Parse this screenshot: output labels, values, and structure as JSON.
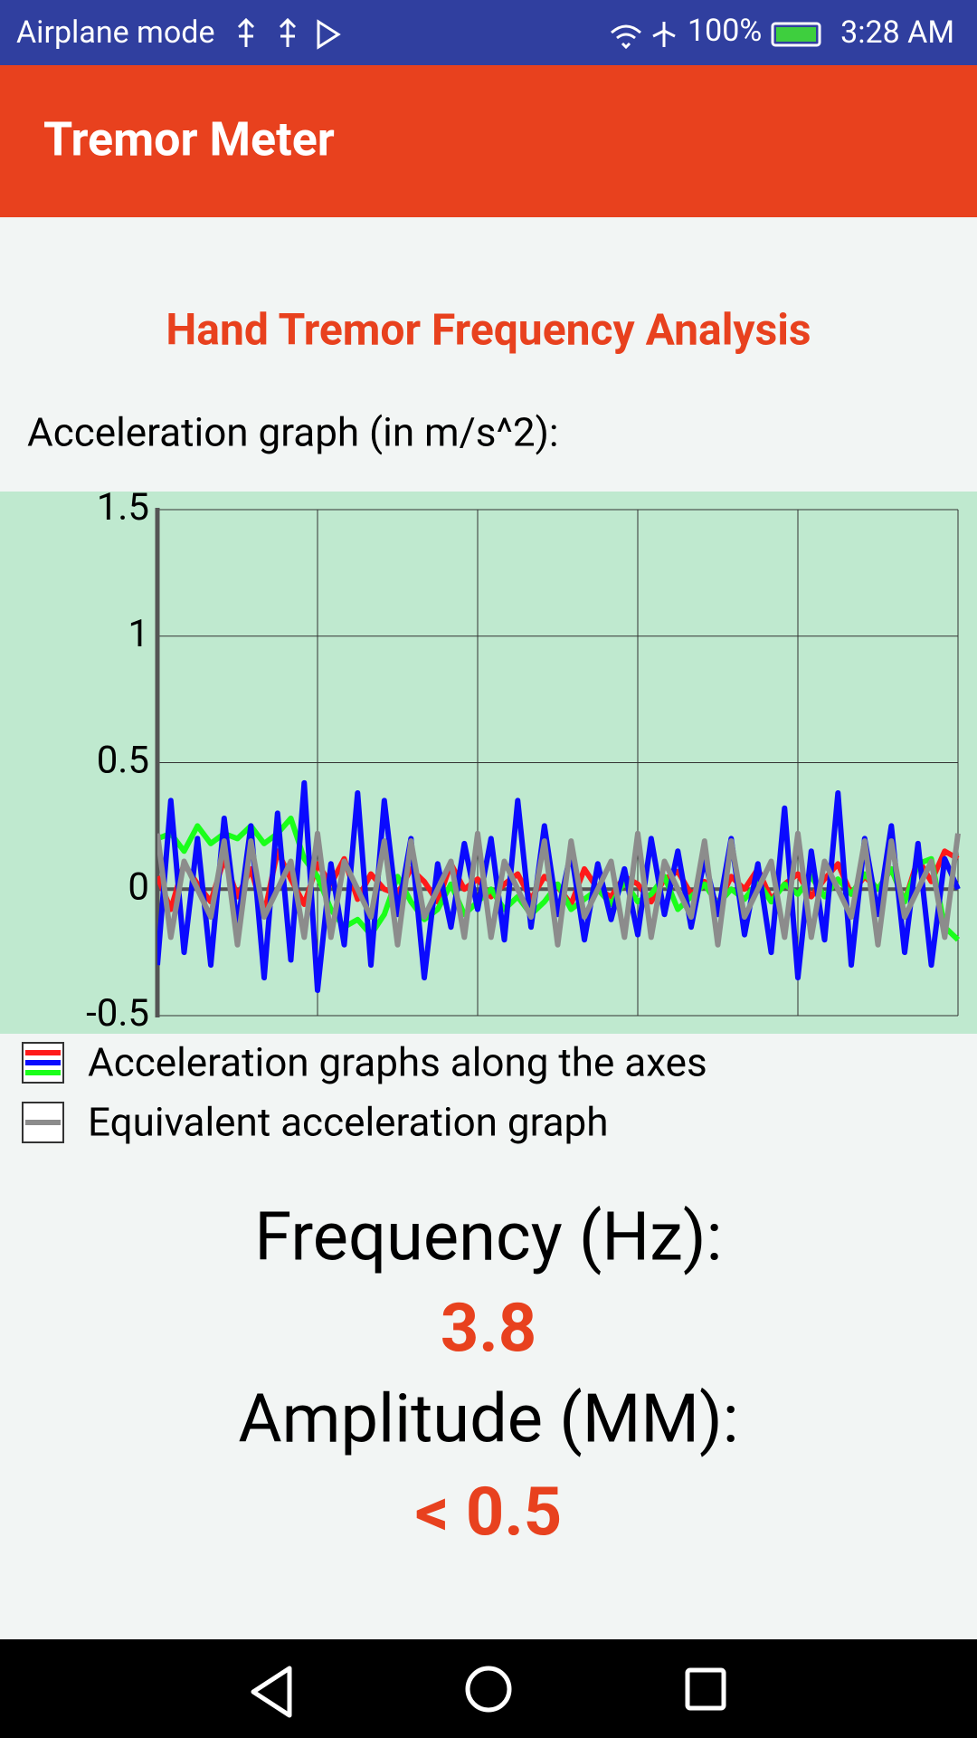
{
  "status_bar": {
    "left": "Airplane mode",
    "battery": "100%",
    "time": "3:28 AM"
  },
  "app_bar": {
    "title": "Tremor Meter"
  },
  "heading": "Hand Tremor Frequency Analysis",
  "graph_label": "Acceleration graph (in m/s^2):",
  "chart_data": {
    "type": "line",
    "x": [
      0,
      1,
      2,
      3,
      4,
      5,
      6,
      7,
      8,
      9,
      10,
      11,
      12,
      13,
      14,
      15,
      16,
      17,
      18,
      19,
      20,
      21,
      22,
      23,
      24,
      25,
      26,
      27,
      28,
      29,
      30,
      31,
      32,
      33,
      34,
      35,
      36,
      37,
      38,
      39,
      40,
      41,
      42,
      43,
      44,
      45,
      46,
      47,
      48,
      49,
      50,
      51,
      52,
      53,
      54,
      55,
      56,
      57,
      58,
      59,
      60
    ],
    "xlim": [
      0,
      60
    ],
    "xticks": [
      0,
      12,
      24,
      36,
      48,
      60
    ],
    "ylim": [
      -0.5,
      1.5
    ],
    "yticks": [
      -0.5,
      0,
      0.5,
      1,
      1.5
    ],
    "grid": true,
    "series": [
      {
        "color": "#ff1a1a",
        "values": [
          0.05,
          -0.08,
          0.1,
          0.02,
          -0.05,
          0.12,
          -0.03,
          0.08,
          -0.1,
          0.15,
          0.04,
          -0.06,
          0.1,
          0.02,
          0.12,
          -0.04,
          0.06,
          0.0,
          -0.02,
          0.08,
          0.03,
          -0.05,
          0.1,
          0.0,
          0.04,
          -0.03,
          0.02,
          0.06,
          -0.04,
          0.05,
          0.01,
          -0.06,
          0.08,
          0.0,
          -0.03,
          0.05,
          0.02,
          -0.05,
          0.04,
          0.07,
          -0.02,
          0.03,
          -0.06,
          0.05,
          0.0,
          0.08,
          -0.04,
          0.02,
          0.06,
          -0.03,
          0.04,
          0.1,
          -0.02,
          0.05,
          0.0,
          0.08,
          -0.05,
          0.12,
          0.03,
          0.15,
          0.12
        ]
      },
      {
        "color": "#1aff1a",
        "values": [
          0.2,
          0.22,
          0.15,
          0.25,
          0.18,
          0.22,
          0.2,
          0.25,
          0.18,
          0.22,
          0.28,
          0.12,
          0.05,
          -0.08,
          -0.15,
          -0.12,
          -0.18,
          -0.1,
          0.05,
          -0.05,
          -0.12,
          -0.08,
          0.02,
          -0.1,
          -0.05,
          0.0,
          -0.08,
          -0.03,
          -0.1,
          -0.05,
          0.02,
          -0.08,
          -0.04,
          0.0,
          -0.06,
          0.03,
          -0.05,
          -0.02,
          0.05,
          -0.08,
          -0.03,
          0.02,
          -0.06,
          0.0,
          -0.04,
          0.03,
          -0.05,
          0.02,
          -0.02,
          0.05,
          -0.03,
          0.04,
          -0.02,
          0.06,
          0.0,
          0.08,
          -0.05,
          0.1,
          0.12,
          -0.15,
          -0.2
        ]
      },
      {
        "color": "#0a0aff",
        "values": [
          -0.3,
          0.35,
          -0.25,
          0.2,
          -0.3,
          0.28,
          -0.15,
          0.25,
          -0.35,
          0.3,
          -0.28,
          0.42,
          -0.4,
          0.1,
          -0.22,
          0.38,
          -0.3,
          0.35,
          -0.1,
          0.2,
          -0.35,
          0.1,
          -0.15,
          0.18,
          -0.08,
          0.2,
          -0.2,
          0.35,
          -0.15,
          0.25,
          -0.1,
          0.15,
          -0.2,
          0.1,
          -0.12,
          0.08,
          -0.18,
          0.2,
          -0.1,
          0.15,
          -0.15,
          0.12,
          -0.1,
          0.2,
          -0.18,
          0.1,
          -0.25,
          0.32,
          -0.35,
          0.15,
          -0.2,
          0.38,
          -0.3,
          0.2,
          -0.1,
          0.25,
          -0.25,
          0.18,
          -0.3,
          0.12,
          0.0
        ]
      },
      {
        "color": "#8c8c8c",
        "values": [
          0.22,
          -0.19,
          0.11,
          0,
          -0.11,
          0.19,
          -0.22,
          0.19,
          -0.11,
          0,
          0.11,
          -0.19,
          0.22,
          -0.19,
          0.11,
          0,
          -0.11,
          0.19,
          -0.22,
          0.19,
          -0.11,
          0,
          0.11,
          -0.19,
          0.22,
          -0.19,
          0.11,
          0,
          -0.11,
          0.19,
          -0.22,
          0.19,
          -0.11,
          0,
          0.11,
          -0.19,
          0.22,
          -0.19,
          0.11,
          0,
          -0.11,
          0.19,
          -0.22,
          0.19,
          -0.11,
          0,
          0.11,
          -0.19,
          0.22,
          -0.19,
          0.11,
          0,
          -0.11,
          0.19,
          -0.22,
          0.19,
          -0.11,
          0,
          0.11,
          -0.19,
          0.22
        ]
      }
    ],
    "legend": [
      {
        "label": "Acceleration graphs along the axes"
      },
      {
        "label": "Equivalent acceleration graph"
      }
    ]
  },
  "results": {
    "frequency_label": "Frequency (Hz):",
    "frequency_value": "3.8",
    "amplitude_label": "Amplitude (MM):",
    "amplitude_value": "< 0.5"
  }
}
